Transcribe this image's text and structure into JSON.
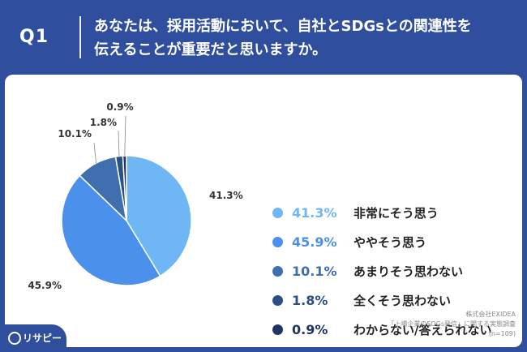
{
  "header": {
    "question_number": "Q1",
    "question_line1": "あなたは、採用活動において、自社とSDGsとの関連性を",
    "question_line2": "伝えることが重要だと思いますか。"
  },
  "chart_data": {
    "type": "pie",
    "title": "",
    "categories": [
      "非常にそう思う",
      "ややそう思う",
      "あまりそう思わない",
      "全くそう思わない",
      "わからない/答えられない"
    ],
    "values": [
      41.3,
      45.9,
      10.1,
      1.8,
      0.9
    ],
    "value_labels": [
      "41.3%",
      "45.9%",
      "10.1%",
      "1.8%",
      "0.9%"
    ],
    "colors": [
      "#6fb6f5",
      "#4b91ec",
      "#3f6faf",
      "#2c4f86",
      "#1f3460"
    ],
    "start": "top, clockwise",
    "legend_position": "right"
  },
  "source": {
    "line1": "株式会社EXIDEA",
    "line2": "「上場企業のSDGs発信」に関する実態調査",
    "line3": "(n=109)"
  },
  "brand": {
    "name": "リサピー"
  }
}
